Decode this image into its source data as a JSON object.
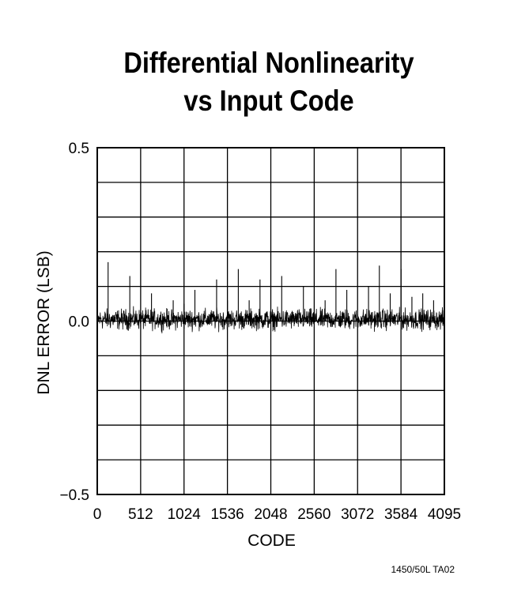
{
  "chart_data": {
    "type": "line",
    "title_line1": "Differential Nonlinearity",
    "title_line2": "vs Input Code",
    "xlabel": "CODE",
    "ylabel": "DNL ERROR (LSB)",
    "xlim": [
      0,
      4095
    ],
    "ylim": [
      -0.5,
      0.5
    ],
    "x_ticks": [
      "0",
      "512",
      "1024",
      "1536",
      "2048",
      "2560",
      "3072",
      "3584",
      "4095"
    ],
    "y_ticks": [
      "0.5",
      "0.0",
      "−0.5"
    ],
    "grid": true,
    "noise_band": [
      -0.05,
      0.05
    ],
    "spikes": [
      {
        "x": 128,
        "y": 0.17
      },
      {
        "x": 384,
        "y": 0.13
      },
      {
        "x": 640,
        "y": 0.08
      },
      {
        "x": 896,
        "y": 0.06
      },
      {
        "x": 1024,
        "y": 0.05
      },
      {
        "x": 1152,
        "y": 0.09
      },
      {
        "x": 1408,
        "y": 0.12
      },
      {
        "x": 1536,
        "y": 0.06
      },
      {
        "x": 1664,
        "y": 0.15
      },
      {
        "x": 1792,
        "y": 0.06
      },
      {
        "x": 1920,
        "y": 0.12
      },
      {
        "x": 2176,
        "y": 0.13
      },
      {
        "x": 2432,
        "y": 0.1
      },
      {
        "x": 2688,
        "y": 0.06
      },
      {
        "x": 2816,
        "y": 0.15
      },
      {
        "x": 2944,
        "y": 0.09
      },
      {
        "x": 3200,
        "y": 0.1
      },
      {
        "x": 3328,
        "y": 0.16
      },
      {
        "x": 3456,
        "y": 0.08
      },
      {
        "x": 3584,
        "y": 0.15
      },
      {
        "x": 3712,
        "y": 0.07
      },
      {
        "x": 3840,
        "y": 0.08
      },
      {
        "x": 3968,
        "y": 0.06
      }
    ]
  },
  "footnote": "1450/50L TA02"
}
